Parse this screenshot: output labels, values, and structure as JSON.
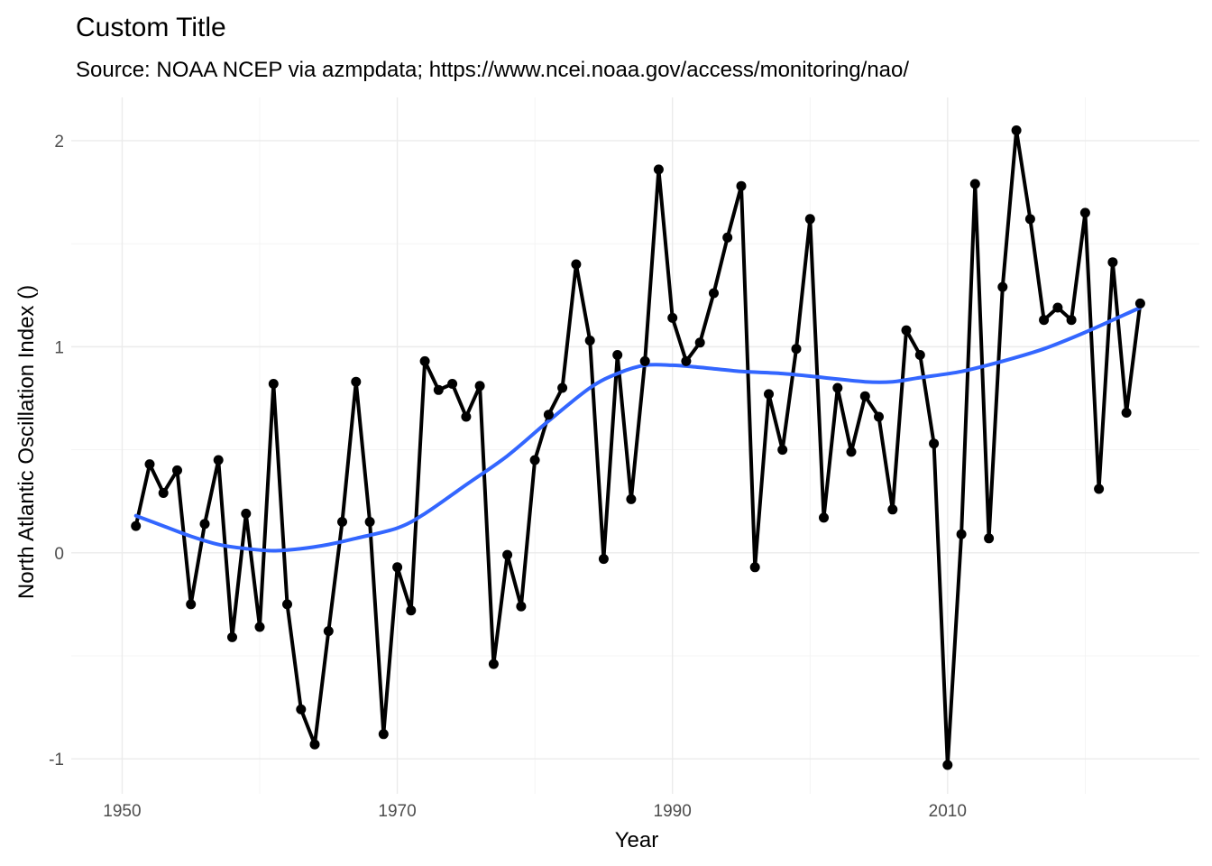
{
  "chart_data": {
    "type": "line",
    "title": "Custom Title",
    "subtitle": "Source: NOAA NCEP via azmpdata; https://www.ncei.noaa.gov/access/monitoring/nao/",
    "xlabel": "Year",
    "ylabel": "North Atlantic Oscillation Index ()",
    "xlim": [
      1946.3,
      2028.3
    ],
    "ylim": [
      -1.17,
      2.21
    ],
    "x_ticks": [
      1950,
      1970,
      1990,
      2010
    ],
    "y_ticks": [
      -1,
      0,
      1,
      2
    ],
    "x_tick_labels": [
      "1950",
      "1970",
      "1990",
      "2010"
    ],
    "y_tick_labels": [
      "-1",
      "0",
      "1",
      "2"
    ],
    "grid": true,
    "legend": "none",
    "colors": {
      "observed": "#000000",
      "smooth": "#3366ff"
    },
    "series": [
      {
        "x": [
          1951,
          1952,
          1953,
          1954,
          1955,
          1956,
          1957,
          1958,
          1959,
          1960,
          1961,
          1962,
          1963,
          1964,
          1965,
          1966,
          1967,
          1968,
          1969,
          1970,
          1971,
          1972,
          1973,
          1974,
          1975,
          1976,
          1977,
          1978,
          1979,
          1980,
          1981,
          1982,
          1983,
          1984,
          1985,
          1986,
          1987,
          1988,
          1989,
          1990,
          1991,
          1992,
          1993,
          1994,
          1995,
          1996,
          1997,
          1998,
          1999,
          2000,
          2001,
          2002,
          2003,
          2004,
          2005,
          2006,
          2007,
          2008,
          2009,
          2010,
          2011,
          2012,
          2013,
          2014,
          2015,
          2016,
          2017,
          2018,
          2019,
          2020,
          2021,
          2022,
          2023,
          2024
        ],
        "values": [
          0.13,
          0.43,
          0.29,
          0.4,
          -0.25,
          0.14,
          0.45,
          -0.41,
          0.19,
          -0.36,
          0.82,
          -0.25,
          -0.76,
          -0.93,
          -0.38,
          0.15,
          0.83,
          0.15,
          -0.88,
          -0.07,
          -0.28,
          0.93,
          0.79,
          0.82,
          0.66,
          0.81,
          -0.54,
          -0.01,
          -0.26,
          0.45,
          0.67,
          0.8,
          1.4,
          1.03,
          -0.03,
          0.96,
          0.26,
          0.93,
          1.86,
          1.14,
          0.93,
          1.02,
          1.26,
          1.53,
          1.78,
          -0.07,
          0.77,
          0.5,
          0.99,
          1.62,
          0.17,
          0.8,
          0.49,
          0.76,
          0.66,
          0.21,
          1.08,
          0.96,
          0.53,
          -1.03,
          0.09,
          1.79,
          0.07,
          1.29,
          2.05,
          1.62,
          1.13,
          1.19,
          1.13,
          1.65,
          0.31,
          1.41,
          0.68,
          1.21
        ]
      },
      {
        "x": [
          1951,
          1953,
          1955,
          1957,
          1959,
          1961,
          1963,
          1965,
          1967,
          1970,
          1972,
          1975,
          1978,
          1981,
          1984,
          1986,
          1988,
          1990,
          1992,
          1995,
          1998,
          2001,
          2004,
          2006,
          2008,
          2011,
          2014,
          2017,
          2020,
          2024
        ],
        "values": [
          0.18,
          0.13,
          0.08,
          0.04,
          0.02,
          0.01,
          0.02,
          0.04,
          0.07,
          0.12,
          0.19,
          0.33,
          0.47,
          0.64,
          0.8,
          0.87,
          0.91,
          0.91,
          0.9,
          0.88,
          0.87,
          0.85,
          0.83,
          0.83,
          0.85,
          0.88,
          0.93,
          0.99,
          1.07,
          1.19
        ]
      }
    ]
  }
}
